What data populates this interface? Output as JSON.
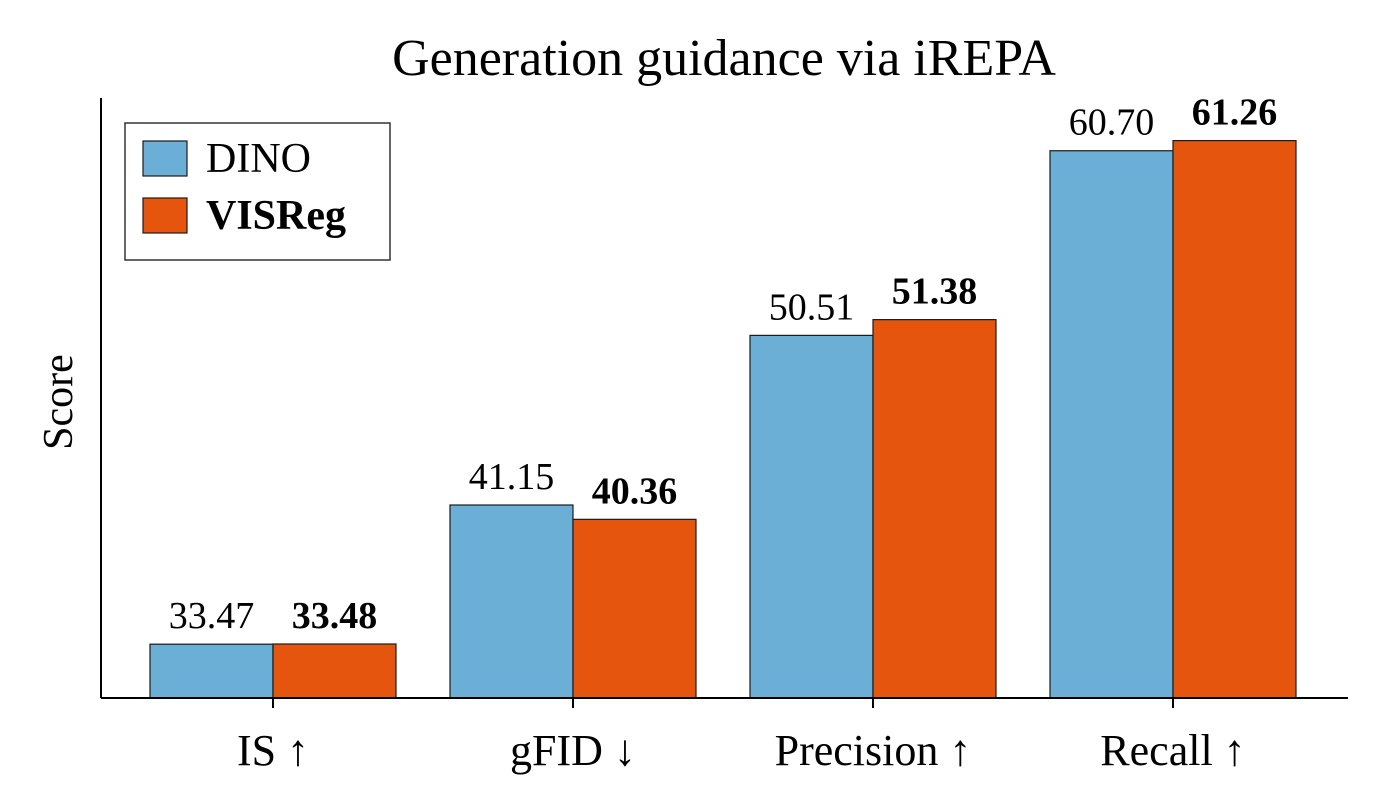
{
  "chart_data": {
    "type": "bar",
    "title": "Generation guidance via iREPA",
    "xlabel": "",
    "ylabel": "Score",
    "categories": [
      "IS ↑",
      "gFID ↓",
      "Precision ↑",
      "Recall ↑"
    ],
    "series": [
      {
        "name": "DINO",
        "values": [
          33.47,
          41.15,
          50.51,
          60.7
        ],
        "labels": [
          "33.47",
          "41.15",
          "50.51",
          "60.70"
        ],
        "color": "#6BAED6",
        "bold": false
      },
      {
        "name": "VISReg",
        "values": [
          33.48,
          40.36,
          51.38,
          61.26
        ],
        "labels": [
          "33.48",
          "40.36",
          "51.38",
          "61.26"
        ],
        "color": "#E6550D",
        "bold": true
      }
    ],
    "ylim": [
      30.5,
      63.5
    ],
    "y_ticks_visible": false,
    "grid": false,
    "legend_position": "top-left"
  }
}
